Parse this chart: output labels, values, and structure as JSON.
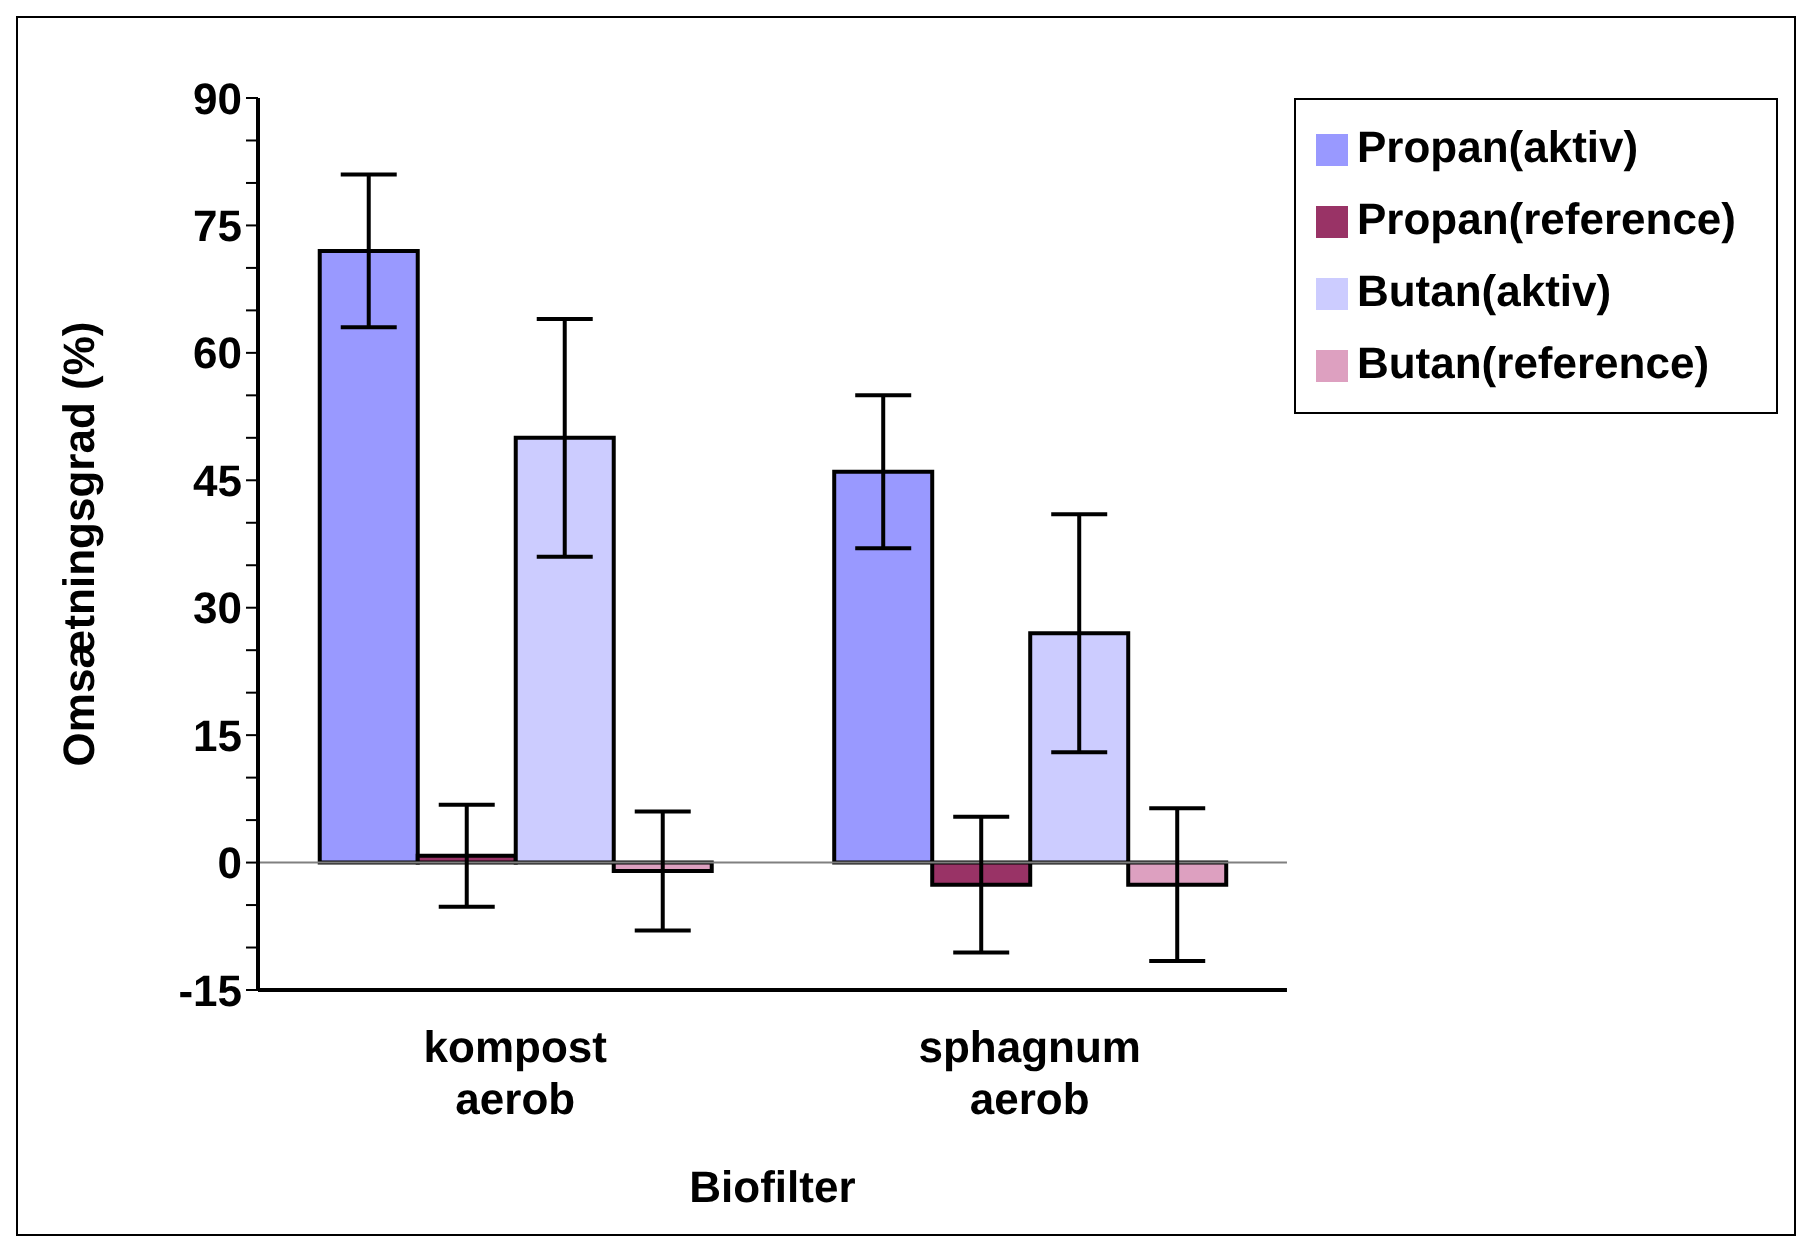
{
  "chart_data": {
    "type": "bar",
    "xlabel": "Biofilter",
    "ylabel": "Omsætningsgrad (%)",
    "categories": [
      "kompost aerob",
      "sphagnum aerob"
    ],
    "series": [
      {
        "name": "Propan(aktiv)",
        "color": "#9999ff",
        "values": [
          72,
          46
        ],
        "errors": [
          9,
          9
        ]
      },
      {
        "name": "Propan(reference)",
        "color": "#993366",
        "values": [
          0.8,
          -2.6
        ],
        "errors": [
          6,
          8
        ]
      },
      {
        "name": "Butan(aktiv)",
        "color": "#ccccff",
        "values": [
          50,
          27
        ],
        "errors": [
          14,
          14
        ]
      },
      {
        "name": "Butan(reference)",
        "color": "#dda0c0",
        "values": [
          -1,
          -2.6
        ],
        "errors": [
          7,
          9
        ]
      }
    ],
    "ylim": [
      -15,
      90
    ],
    "yticks": [
      -15,
      {
        "value": -10,
        "label": null
      },
      {
        "value": -5,
        "label": null
      },
      0,
      {
        "value": 5,
        "label": null
      },
      {
        "value": 10,
        "label": null
      },
      15,
      {
        "value": 20,
        "label": null
      },
      {
        "value": 25,
        "label": null
      },
      30,
      {
        "value": 35,
        "label": null
      },
      {
        "value": 40,
        "label": null
      },
      45,
      {
        "value": 50,
        "label": null
      },
      {
        "value": 55,
        "label": null
      },
      60,
      {
        "value": 65,
        "label": null
      },
      {
        "value": 70,
        "label": null
      },
      75,
      {
        "value": 80,
        "label": null
      },
      {
        "value": 85,
        "label": null
      },
      90
    ],
    "ref_lines": [
      {
        "axis": "y",
        "value": 0,
        "color": "#808080"
      }
    ],
    "grid": false,
    "legend": "top right"
  }
}
